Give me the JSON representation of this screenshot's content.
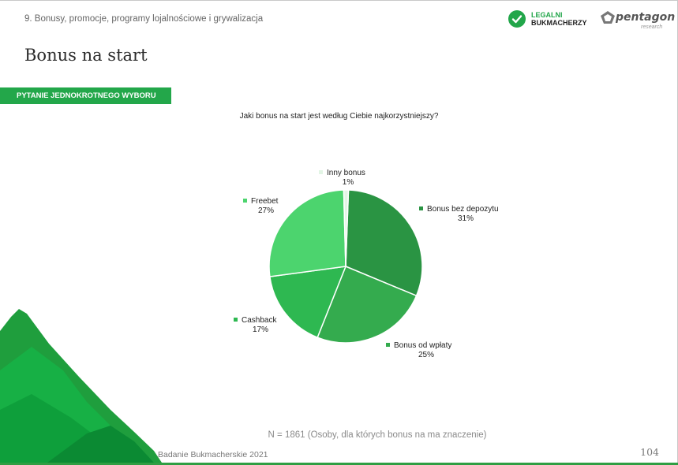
{
  "header": {
    "section": "9. Bonusy, promocje, programy lojalnościowe i grywalizacja",
    "title": "Bonus na start"
  },
  "logos": {
    "legalni_line1": "LEGALNI",
    "legalni_line2": "BUKMACHERZY",
    "pentagon_name": "pentagon",
    "pentagon_sub": "research"
  },
  "badge": "PYTANIE JEDNOKROTNEGO WYBORU",
  "question": "Jaki bonus na start jest według Ciebie najkorzystniejszy?",
  "chart_data": {
    "type": "pie",
    "title": "",
    "slices": [
      {
        "label": "Bonus bez depozytu",
        "value": 31,
        "display": "31%",
        "color": "#2a9443"
      },
      {
        "label": "Bonus od wpłaty",
        "value": 25,
        "display": "25%",
        "color": "#34ab4e"
      },
      {
        "label": "Cashback",
        "value": 17,
        "display": "17%",
        "color": "#2eb851"
      },
      {
        "label": "Freebet",
        "value": 27,
        "display": "27%",
        "color": "#4cd46e"
      },
      {
        "label": "Inny bonus",
        "value": 1,
        "display": "1%",
        "color": "#e2f5e5"
      }
    ]
  },
  "note": "N = 1861 (Osoby, dla których bonus na ma znaczenie)",
  "footer": {
    "left": "Badanie Bukmacherskie 2021",
    "page": "104"
  },
  "icons": {
    "legalni": "check-circle-icon",
    "pentagon": "pentagon-icon"
  },
  "colors": {
    "accent": "#23a74a"
  }
}
